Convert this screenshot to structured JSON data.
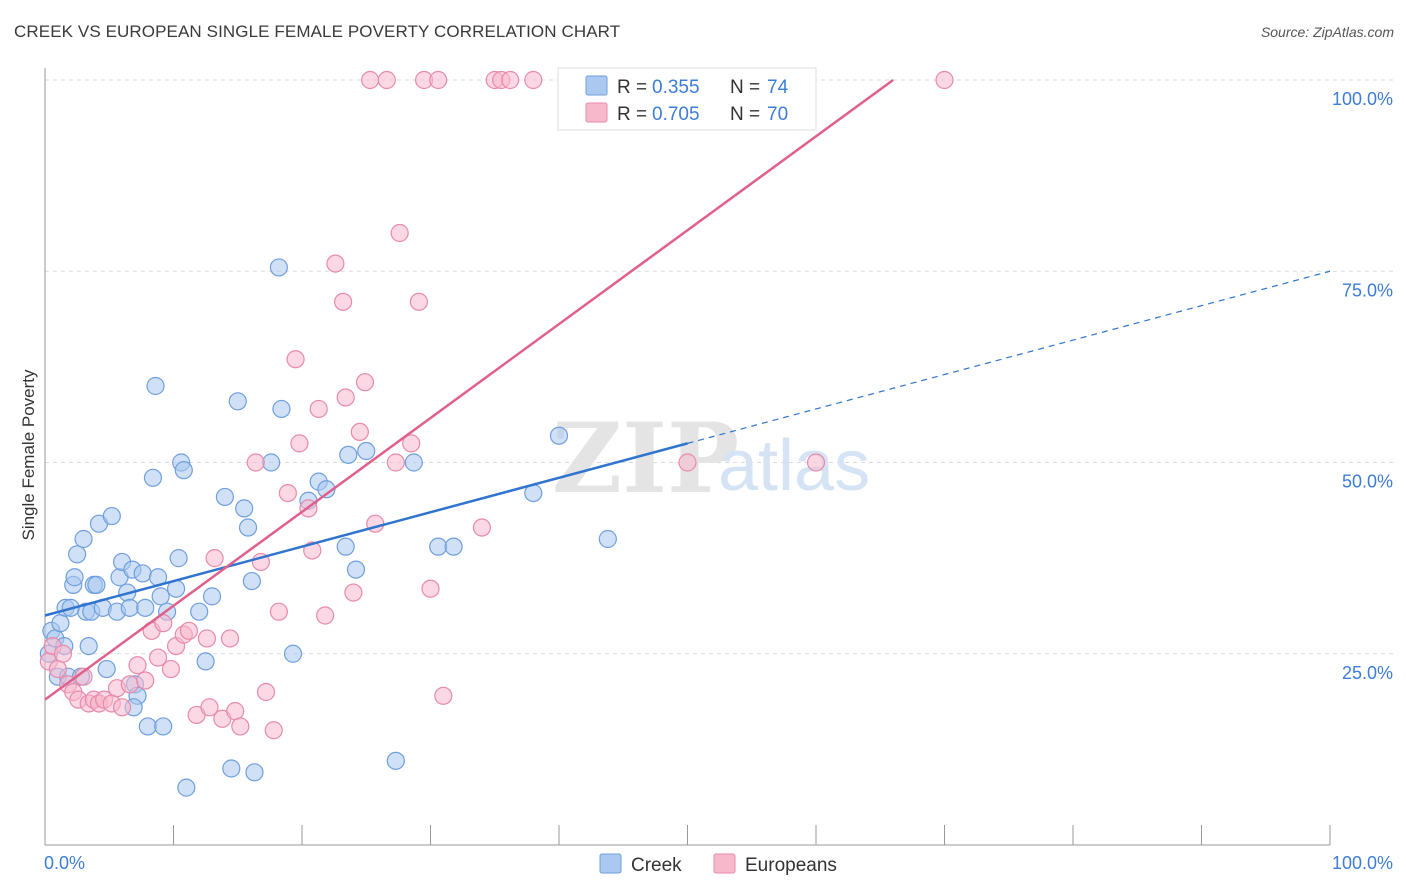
{
  "header": {
    "title": "CREEK VS EUROPEAN SINGLE FEMALE POVERTY CORRELATION CHART",
    "source": "Source: ZipAtlas.com"
  },
  "watermark": {
    "zip": "ZIP",
    "atlas": "atlas"
  },
  "colors": {
    "creek_fill": "#aac8f0",
    "creek_stroke": "#6f9fde",
    "creek_line": "#2f74cf",
    "europeans_fill": "#f7b8cc",
    "europeans_stroke": "#e88aaa",
    "europeans_line": "#e0608c",
    "tick_text": "#3d7dd6",
    "grid": "#d9d9d9"
  },
  "legend_box": {
    "rows": [
      {
        "series": "Creek",
        "r_label": "R = ",
        "r_value": "0.355",
        "n_label": "N = ",
        "n_value": "74"
      },
      {
        "series": "Europeans",
        "r_label": "R = ",
        "r_value": "0.705",
        "n_label": "N = ",
        "n_value": "70"
      }
    ]
  },
  "bottom_legend": [
    "Creek",
    "Europeans"
  ],
  "chart_data": {
    "type": "scatter",
    "title": "CREEK VS EUROPEAN SINGLE FEMALE POVERTY CORRELATION CHART",
    "xlabel": "",
    "ylabel": "Single Female Poverty",
    "xlim": [
      0,
      100
    ],
    "ylim": [
      0,
      100
    ],
    "x_tick_labels": [
      "0.0%",
      "100.0%"
    ],
    "y_tick_labels": [
      "25.0%",
      "50.0%",
      "75.0%",
      "100.0%"
    ],
    "y_ticks": [
      25,
      50,
      75,
      100
    ],
    "grid": true,
    "legend_position": "top-center",
    "series": [
      {
        "name": "Creek",
        "r": 0.355,
        "n": 74,
        "trend": {
          "x0": 0,
          "y0": 30.0,
          "x1": 50,
          "y1": 52.5,
          "dashed_to_x": 100,
          "dashed_to_y": 75.0
        },
        "points": [
          [
            0.3,
            25
          ],
          [
            0.5,
            28
          ],
          [
            0.8,
            27
          ],
          [
            1.0,
            22
          ],
          [
            1.2,
            29
          ],
          [
            1.5,
            26
          ],
          [
            1.6,
            31
          ],
          [
            1.8,
            22
          ],
          [
            2.2,
            34
          ],
          [
            2.3,
            35
          ],
          [
            2.5,
            38
          ],
          [
            2.8,
            22
          ],
          [
            3.0,
            40
          ],
          [
            3.2,
            30.5
          ],
          [
            3.4,
            26
          ],
          [
            3.6,
            30.5
          ],
          [
            3.8,
            34
          ],
          [
            4.0,
            34
          ],
          [
            4.2,
            42
          ],
          [
            4.5,
            31
          ],
          [
            4.8,
            23
          ],
          [
            5.2,
            43
          ],
          [
            5.6,
            30.5
          ],
          [
            5.8,
            35
          ],
          [
            6.0,
            37
          ],
          [
            6.4,
            33
          ],
          [
            6.6,
            31
          ],
          [
            6.8,
            36
          ],
          [
            7.0,
            21
          ],
          [
            7.2,
            19.5
          ],
          [
            7.6,
            35.5
          ],
          [
            7.8,
            31
          ],
          [
            8.0,
            15.5
          ],
          [
            8.4,
            48
          ],
          [
            8.6,
            60
          ],
          [
            8.8,
            35
          ],
          [
            9.0,
            32.5
          ],
          [
            9.2,
            15.5
          ],
          [
            9.5,
            30.5
          ],
          [
            10.2,
            33.5
          ],
          [
            10.4,
            37.5
          ],
          [
            10.6,
            50
          ],
          [
            10.8,
            49
          ],
          [
            11.0,
            7.5
          ],
          [
            12.0,
            30.5
          ],
          [
            13.0,
            32.5
          ],
          [
            14.0,
            45.5
          ],
          [
            14.5,
            10
          ],
          [
            15.0,
            58
          ],
          [
            15.5,
            44
          ],
          [
            15.8,
            41.5
          ],
          [
            16.1,
            34.5
          ],
          [
            16.3,
            9.5
          ],
          [
            17.6,
            50
          ],
          [
            18.2,
            75.5
          ],
          [
            18.4,
            57
          ],
          [
            19.3,
            25
          ],
          [
            20.5,
            45
          ],
          [
            21.3,
            47.5
          ],
          [
            21.9,
            46.5
          ],
          [
            23.4,
            39
          ],
          [
            23.6,
            51
          ],
          [
            24.2,
            36
          ],
          [
            25.0,
            51.5
          ],
          [
            27.3,
            11
          ],
          [
            28.7,
            50
          ],
          [
            30.6,
            39
          ],
          [
            31.8,
            39
          ],
          [
            38.0,
            46
          ],
          [
            40.0,
            53.5
          ],
          [
            43.8,
            40
          ],
          [
            12.5,
            24
          ],
          [
            6.9,
            18
          ],
          [
            2.0,
            31
          ]
        ]
      },
      {
        "name": "Europeans",
        "r": 0.705,
        "n": 70,
        "trend": {
          "x0": 0,
          "y0": 19.0,
          "x1": 66,
          "y1": 100
        },
        "points": [
          [
            0.3,
            24
          ],
          [
            0.6,
            26
          ],
          [
            1.0,
            23
          ],
          [
            1.4,
            25
          ],
          [
            1.8,
            21
          ],
          [
            2.2,
            20
          ],
          [
            2.6,
            19
          ],
          [
            3.0,
            22
          ],
          [
            3.4,
            18.5
          ],
          [
            3.8,
            19
          ],
          [
            4.2,
            18.5
          ],
          [
            4.6,
            19
          ],
          [
            5.2,
            18.5
          ],
          [
            5.6,
            20.5
          ],
          [
            6.0,
            18
          ],
          [
            6.6,
            21
          ],
          [
            7.2,
            23.5
          ],
          [
            7.8,
            21.5
          ],
          [
            8.3,
            28
          ],
          [
            8.8,
            24.5
          ],
          [
            9.2,
            29
          ],
          [
            9.8,
            23
          ],
          [
            10.2,
            26
          ],
          [
            10.8,
            27.5
          ],
          [
            11.2,
            28
          ],
          [
            11.8,
            17
          ],
          [
            12.6,
            27
          ],
          [
            12.8,
            18
          ],
          [
            13.2,
            37.5
          ],
          [
            13.8,
            16.5
          ],
          [
            14.4,
            27
          ],
          [
            14.8,
            17.5
          ],
          [
            15.2,
            15.5
          ],
          [
            16.4,
            50
          ],
          [
            16.8,
            37
          ],
          [
            17.2,
            20
          ],
          [
            17.8,
            15
          ],
          [
            18.2,
            30.5
          ],
          [
            18.9,
            46
          ],
          [
            19.5,
            63.5
          ],
          [
            19.8,
            52.5
          ],
          [
            20.5,
            44
          ],
          [
            20.8,
            38.5
          ],
          [
            21.3,
            57
          ],
          [
            21.8,
            30
          ],
          [
            22.6,
            76
          ],
          [
            23.2,
            71
          ],
          [
            23.4,
            58.5
          ],
          [
            24.0,
            33
          ],
          [
            24.5,
            54
          ],
          [
            24.9,
            60.5
          ],
          [
            25.3,
            100
          ],
          [
            25.7,
            42
          ],
          [
            26.6,
            100
          ],
          [
            27.3,
            50
          ],
          [
            27.6,
            80
          ],
          [
            28.5,
            52.5
          ],
          [
            29.1,
            71
          ],
          [
            29.5,
            100
          ],
          [
            30.0,
            33.5
          ],
          [
            30.6,
            100
          ],
          [
            31.0,
            19.5
          ],
          [
            34.0,
            41.5
          ],
          [
            35.0,
            100
          ],
          [
            35.5,
            100
          ],
          [
            36.2,
            100
          ],
          [
            38.0,
            100
          ],
          [
            50.0,
            50
          ],
          [
            60.0,
            50
          ],
          [
            70.0,
            100
          ]
        ]
      }
    ]
  }
}
